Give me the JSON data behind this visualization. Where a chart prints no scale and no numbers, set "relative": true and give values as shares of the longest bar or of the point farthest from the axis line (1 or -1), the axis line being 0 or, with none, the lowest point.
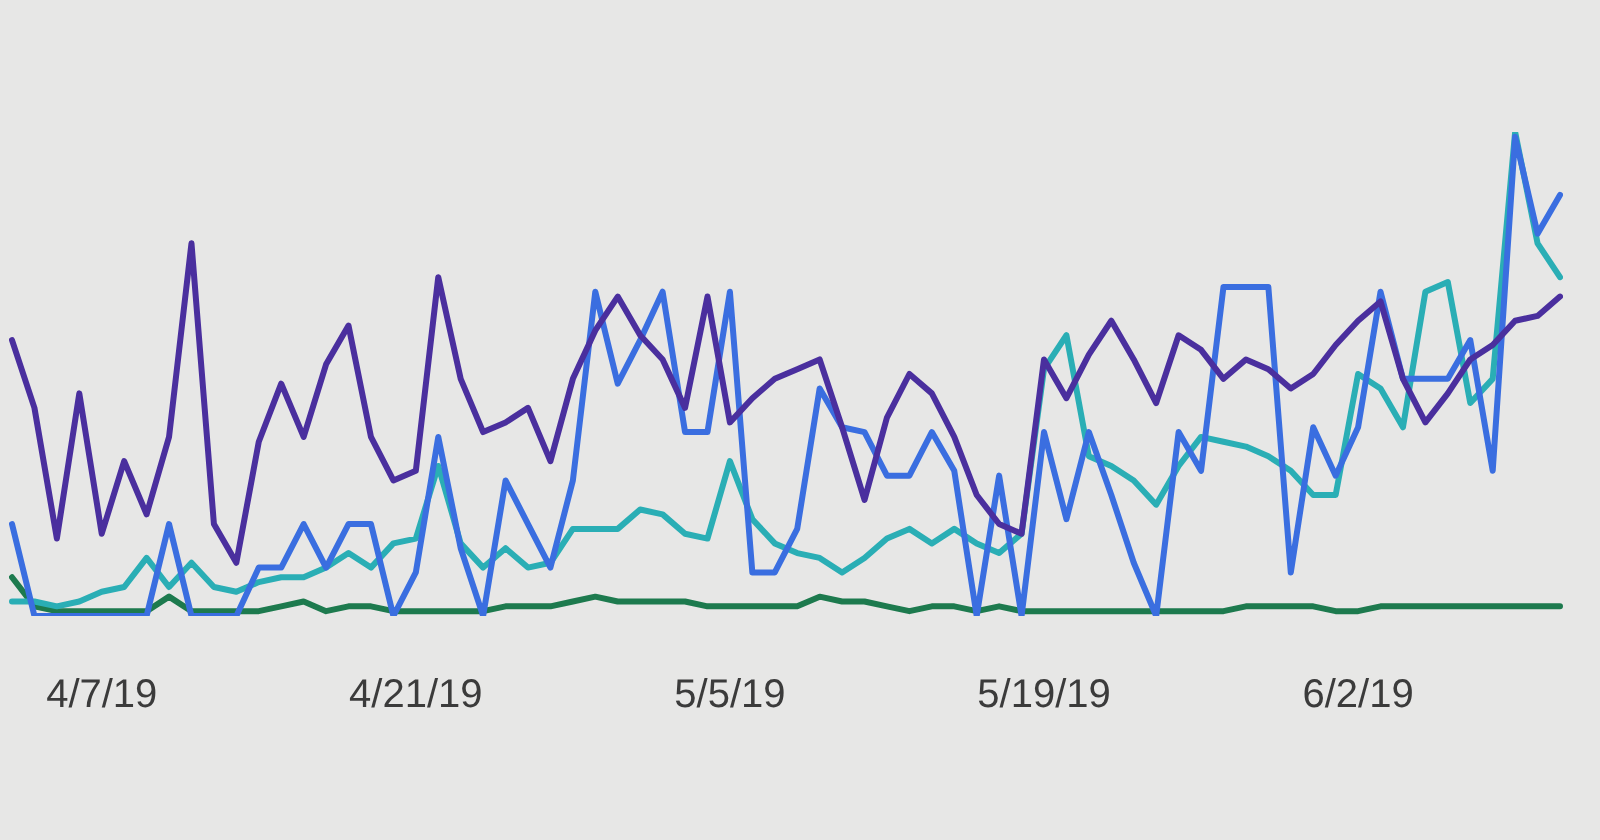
{
  "chart_data": {
    "type": "line",
    "relative": true,
    "grid": false,
    "legend": false,
    "marker": "none",
    "line_style": "solid",
    "tick_labels": "x",
    "categories": [
      null,
      null,
      null,
      null,
      "4/7/19",
      null,
      null,
      null,
      null,
      null,
      null,
      null,
      null,
      null,
      null,
      null,
      null,
      null,
      "4/21/19",
      null,
      null,
      null,
      null,
      null,
      null,
      null,
      null,
      null,
      null,
      null,
      null,
      null,
      "5/5/19",
      null,
      null,
      null,
      null,
      null,
      null,
      null,
      null,
      null,
      null,
      null,
      null,
      null,
      "5/19/19",
      null,
      null,
      null,
      null,
      null,
      null,
      null,
      null,
      null,
      null,
      null,
      null,
      null,
      "6/2/19",
      null,
      null,
      null,
      null,
      null,
      null,
      null,
      null,
      null
    ],
    "series": [
      {
        "color": "#4a2f9e",
        "values": [
          0.57,
          0.43,
          0.16,
          0.46,
          0.17,
          0.32,
          0.21,
          0.37,
          0.77,
          0.19,
          0.11,
          0.36,
          0.48,
          0.37,
          0.52,
          0.6,
          0.37,
          0.28,
          0.3,
          0.7,
          0.49,
          0.38,
          0.4,
          0.43,
          0.32,
          0.49,
          0.59,
          0.66,
          0.58,
          0.53,
          0.43,
          0.66,
          0.4,
          0.45,
          0.49,
          0.51,
          0.53,
          0.39,
          0.24,
          0.41,
          0.5,
          0.46,
          0.37,
          0.25,
          0.19,
          0.17,
          0.53,
          0.45,
          0.54,
          0.61,
          0.53,
          0.44,
          0.58,
          0.55,
          0.49,
          0.53,
          0.51,
          0.47,
          0.5,
          0.56,
          0.61,
          0.65,
          0.49,
          0.4,
          0.46,
          0.53,
          0.56,
          0.61,
          0.62,
          0.66
        ]
      },
      {
        "color": "#3a6ee0",
        "values": [
          0.19,
          0,
          0,
          0,
          0,
          0,
          0,
          0.19,
          0,
          0,
          0,
          0.1,
          0.1,
          0.19,
          0.1,
          0.19,
          0.19,
          0,
          0.09,
          0.37,
          0.14,
          0,
          0.28,
          0.19,
          0.1,
          0.28,
          0.67,
          0.48,
          0.57,
          0.67,
          0.38,
          0.38,
          0.67,
          0.09,
          0.09,
          0.18,
          0.47,
          0.39,
          0.38,
          0.29,
          0.29,
          0.38,
          0.3,
          0,
          0.29,
          0,
          0.38,
          0.2,
          0.38,
          0.25,
          0.11,
          0,
          0.38,
          0.3,
          0.68,
          0.68,
          0.68,
          0.09,
          0.39,
          0.29,
          0.39,
          0.67,
          0.49,
          0.49,
          0.49,
          0.57,
          0.3,
          0.99,
          0.79,
          0.87
        ]
      },
      {
        "color": "#2aaeb5",
        "values": [
          0.03,
          0.03,
          0.02,
          0.03,
          0.05,
          0.06,
          0.12,
          0.06,
          0.11,
          0.06,
          0.05,
          0.07,
          0.08,
          0.08,
          0.1,
          0.13,
          0.1,
          0.15,
          0.16,
          0.31,
          0.15,
          0.1,
          0.14,
          0.1,
          0.11,
          0.18,
          0.18,
          0.18,
          0.22,
          0.21,
          0.17,
          0.16,
          0.32,
          0.2,
          0.15,
          0.13,
          0.12,
          0.09,
          0.12,
          0.16,
          0.18,
          0.15,
          0.18,
          0.15,
          0.13,
          0.17,
          0.51,
          0.58,
          0.33,
          0.31,
          0.28,
          0.23,
          0.31,
          0.37,
          0.36,
          0.35,
          0.33,
          0.3,
          0.25,
          0.25,
          0.5,
          0.47,
          0.39,
          0.67,
          0.69,
          0.44,
          0.49,
          1.0,
          0.77,
          0.7
        ]
      },
      {
        "color": "#1d7a4e",
        "values": [
          0.08,
          0.02,
          0.01,
          0.01,
          0.01,
          0.01,
          0.01,
          0.04,
          0.01,
          0.01,
          0.01,
          0.01,
          0.02,
          0.03,
          0.01,
          0.02,
          0.02,
          0.01,
          0.01,
          0.01,
          0.01,
          0.01,
          0.02,
          0.02,
          0.02,
          0.03,
          0.04,
          0.03,
          0.03,
          0.03,
          0.03,
          0.02,
          0.02,
          0.02,
          0.02,
          0.02,
          0.04,
          0.03,
          0.03,
          0.02,
          0.01,
          0.02,
          0.02,
          0.01,
          0.02,
          0.01,
          0.01,
          0.01,
          0.01,
          0.01,
          0.01,
          0.01,
          0.01,
          0.01,
          0.01,
          0.02,
          0.02,
          0.02,
          0.02,
          0.01,
          0.01,
          0.02,
          0.02,
          0.02,
          0.02,
          0.02,
          0.02,
          0.02,
          0.02,
          0.02
        ]
      }
    ]
  }
}
